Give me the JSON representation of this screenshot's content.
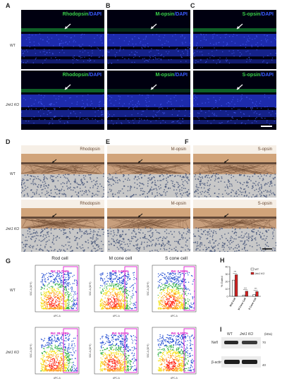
{
  "panels": {
    "A": "A",
    "B": "B",
    "C": "C",
    "D": "D",
    "E": "E",
    "F": "F",
    "G": "G",
    "H": "H",
    "I": "I"
  },
  "rows": {
    "wt": "WT",
    "ko": "Jnk1 KO"
  },
  "fluorescence": {
    "dapi": "DAPI",
    "sep": "/",
    "markers": [
      "Rhodopsin",
      "M-opsin",
      "S-opsin"
    ]
  },
  "ihc": {
    "markers": [
      "Rhodopsin",
      "M-opsin",
      "S-opsin"
    ]
  },
  "flow": {
    "columns": [
      "Rod cell",
      "M cone cell",
      "S cone cell"
    ],
    "gates": {
      "wt": [
        "R4: 21.794%",
        "R4: 1.665%",
        "R4: 2.339%"
      ],
      "ko": [
        "R4: 29.125%",
        "R4: 6.910%",
        "R4: 6.337%"
      ]
    },
    "x_axis": "APC-A",
    "y_axis": "SSC-A (10^3)"
  },
  "chart_data": {
    "type": "bar",
    "categories": [
      "Rod Cell",
      "M Cone Cell",
      "S Cone Cell"
    ],
    "series": [
      {
        "name": "WT",
        "values": [
          21.8,
          1.7,
          2.3
        ],
        "color": "#ffffff"
      },
      {
        "name": "Jnk1 KO",
        "values": [
          29.1,
          6.9,
          6.3
        ],
        "color": "#d42020"
      }
    ],
    "ylabel": "% Gated",
    "ylim": [
      0,
      40
    ],
    "yticks": [
      0,
      10,
      20,
      30,
      40
    ],
    "significance": [
      "***",
      "***",
      "***"
    ],
    "legend": "top-right"
  },
  "western": {
    "lanes": [
      "WT",
      "Jnk1 KO"
    ],
    "unit": "(kDa)",
    "bands": [
      "Nefl",
      "β-actin"
    ],
    "markers": [
      "70",
      "40"
    ]
  }
}
